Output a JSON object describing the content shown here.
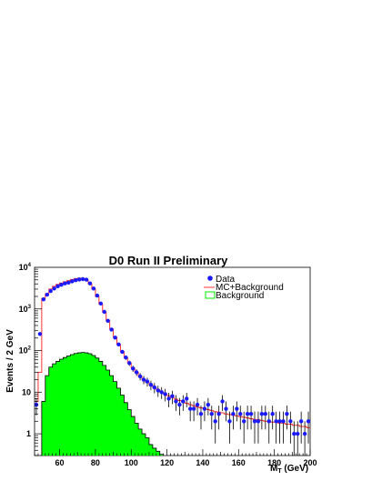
{
  "chart_data": {
    "type": "histogram",
    "title": "D0 Run II Preliminary",
    "xlabel": "M",
    "xlabel_sub": "T",
    "xlabel_unit": " (GeV)",
    "ylabel": "Events / 2 GeV",
    "xlim": [
      46,
      200
    ],
    "ylim": [
      0.3,
      10000
    ],
    "yscale": "log",
    "x_ticks": [
      60,
      80,
      100,
      120,
      140,
      160,
      180,
      200
    ],
    "y_ticks": [
      {
        "value": 1,
        "label": "1"
      },
      {
        "value": 10,
        "label": "10"
      },
      {
        "value": 100,
        "label": "10",
        "exp": "2"
      },
      {
        "value": 1000,
        "label": "10",
        "exp": "3"
      },
      {
        "value": 10000,
        "label": "10",
        "exp": "4"
      }
    ],
    "bin_width": 2,
    "bin_edges_start": 46,
    "legend": {
      "position": "top-right",
      "entries": [
        {
          "label": "Data",
          "style": "marker",
          "color": "#1a1aff"
        },
        {
          "label": "MC+Background",
          "style": "line",
          "color": "#ff3333"
        },
        {
          "label": "Background",
          "style": "box",
          "color": "#00ee00"
        }
      ]
    },
    "series": [
      {
        "name": "Background",
        "style": "filled-histogram",
        "color": "#00ff00",
        "x_start": 50,
        "values": [
          6,
          25,
          40,
          48,
          55,
          62,
          68,
          74,
          80,
          85,
          88,
          90,
          88,
          84,
          76,
          66,
          55,
          44,
          34,
          25,
          18,
          12.5,
          8.5,
          5.6,
          3.8,
          2.6,
          1.8,
          1.3,
          1.0,
          0.8,
          0.55,
          0.45,
          0.38,
          0.32
        ]
      },
      {
        "name": "MC+Background",
        "style": "step-line",
        "color": "#ff3333",
        "x_start": 46,
        "values": [
          6,
          30,
          1800,
          2300,
          3000,
          3500,
          3900,
          4200,
          4500,
          4800,
          5100,
          5350,
          5500,
          5400,
          4900,
          4000,
          3000,
          2000,
          1300,
          830,
          520,
          330,
          210,
          140,
          95,
          68,
          50,
          38,
          30,
          24,
          20,
          17,
          15,
          13,
          11.5,
          10,
          9,
          8.2,
          7.4,
          6.8,
          6.3,
          5.8,
          5.4,
          5.0,
          4.7,
          4.4,
          4.2,
          4.0,
          3.8,
          3.6,
          3.4,
          3.3,
          3.2,
          3.0,
          2.9,
          2.8,
          2.7,
          2.6,
          2.5,
          2.4,
          2.3,
          2.2,
          2.2,
          2.1,
          2.0,
          2.0,
          1.9,
          1.9,
          1.8,
          1.8,
          1.7,
          1.7,
          1.6,
          1.6,
          1.5,
          1.5,
          1.4
        ]
      },
      {
        "name": "Data",
        "style": "markers-with-errors",
        "color": "#1a1aff",
        "x_start": 47,
        "values": [
          5,
          250,
          1700,
          2200,
          2700,
          3100,
          3500,
          3800,
          4100,
          4300,
          4600,
          4900,
          5100,
          5200,
          5050,
          4100,
          3100,
          2100,
          1350,
          850,
          520,
          320,
          205,
          140,
          93,
          68,
          50,
          37,
          30,
          24,
          20,
          18,
          15,
          13,
          11,
          10,
          9,
          7,
          8,
          6,
          5,
          6,
          7,
          4,
          4,
          5,
          3,
          4,
          5,
          3,
          2,
          3,
          6,
          4,
          2,
          3,
          4,
          3,
          2,
          3,
          3,
          2,
          2,
          3,
          3,
          2,
          3,
          2,
          2,
          2,
          3,
          2,
          1,
          1,
          2,
          1,
          2
        ]
      }
    ]
  }
}
